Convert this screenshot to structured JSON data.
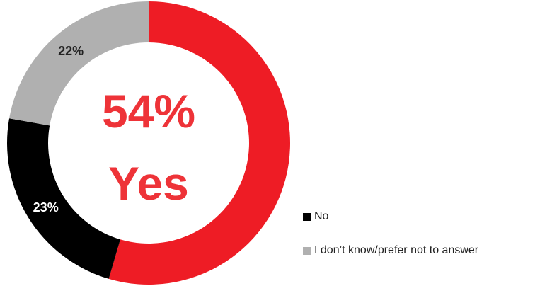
{
  "chart_data": {
    "type": "pie",
    "variant": "donut",
    "slices": [
      {
        "label": "Yes",
        "value": 54,
        "color": "#ee1c25",
        "show_label": false
      },
      {
        "label": "No",
        "value": 23,
        "color": "#000000",
        "show_label": true,
        "label_color": "#ffffff"
      },
      {
        "label": "I don’t know/prefer not to answer",
        "value": 22,
        "color": "#b0b0b0",
        "show_label": true,
        "label_color": "#222222"
      }
    ],
    "center": {
      "percent": "54%",
      "word": "Yes",
      "color": "#ee3338"
    },
    "legend": {
      "placement": "bottom-right",
      "items": [
        {
          "label": "No",
          "color": "#000000"
        },
        {
          "label": "I don’t know/prefer not to answer",
          "color": "#b0b0b0"
        }
      ]
    }
  }
}
